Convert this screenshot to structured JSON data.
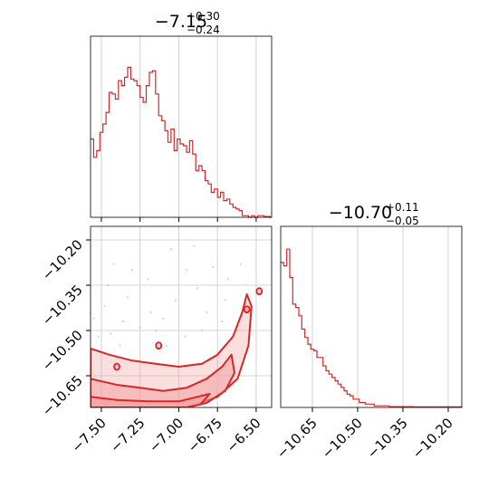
{
  "chart_data": [
    {
      "type": "histogram",
      "panel": "marginal-param-1",
      "title": {
        "main": "−7.15",
        "sup": "+0.30",
        "sub": "−0.24"
      },
      "xlim": [
        -7.57,
        -6.4
      ],
      "x_ticks": [
        -7.5,
        -7.25,
        -7.0,
        -6.75,
        -6.5
      ],
      "color": "#d62728",
      "grid": true,
      "bins": [
        [
          -7.57,
          0.47
        ],
        [
          -7.55,
          0.36
        ],
        [
          -7.53,
          0.4
        ],
        [
          -7.51,
          0.51
        ],
        [
          -7.49,
          0.56
        ],
        [
          -7.47,
          0.63
        ],
        [
          -7.45,
          0.75
        ],
        [
          -7.43,
          0.74
        ],
        [
          -7.41,
          0.71
        ],
        [
          -7.39,
          0.82
        ],
        [
          -7.37,
          0.79
        ],
        [
          -7.35,
          0.84
        ],
        [
          -7.33,
          0.9
        ],
        [
          -7.31,
          0.83
        ],
        [
          -7.29,
          0.82
        ],
        [
          -7.27,
          0.79
        ],
        [
          -7.25,
          0.72
        ],
        [
          -7.23,
          0.69
        ],
        [
          -7.21,
          0.79
        ],
        [
          -7.19,
          0.87
        ],
        [
          -7.17,
          0.88
        ],
        [
          -7.15,
          0.74
        ],
        [
          -7.13,
          0.61
        ],
        [
          -7.11,
          0.58
        ],
        [
          -7.09,
          0.52
        ],
        [
          -7.07,
          0.45
        ],
        [
          -7.05,
          0.53
        ],
        [
          -7.03,
          0.4
        ],
        [
          -7.01,
          0.47
        ],
        [
          -6.99,
          0.44
        ],
        [
          -6.97,
          0.43
        ],
        [
          -6.95,
          0.39
        ],
        [
          -6.93,
          0.46
        ],
        [
          -6.91,
          0.38
        ],
        [
          -6.89,
          0.28
        ],
        [
          -6.87,
          0.31
        ],
        [
          -6.85,
          0.28
        ],
        [
          -6.83,
          0.22
        ],
        [
          -6.81,
          0.2
        ],
        [
          -6.79,
          0.15
        ],
        [
          -6.77,
          0.17
        ],
        [
          -6.75,
          0.12
        ],
        [
          -6.73,
          0.15
        ],
        [
          -6.71,
          0.1
        ],
        [
          -6.69,
          0.11
        ],
        [
          -6.67,
          0.08
        ],
        [
          -6.65,
          0.06
        ],
        [
          -6.63,
          0.05
        ],
        [
          -6.61,
          0.04
        ],
        [
          -6.59,
          0.01
        ],
        [
          -6.57,
          0.01
        ],
        [
          -6.55,
          0.0
        ],
        [
          -6.53,
          0.01
        ],
        [
          -6.51,
          0.0
        ],
        [
          -6.49,
          0.01
        ],
        [
          -6.47,
          0.01
        ],
        [
          -6.45,
          0.005
        ],
        [
          -6.43,
          0.005
        ],
        [
          -6.41,
          0.0
        ]
      ]
    },
    {
      "type": "contour",
      "panel": "joint-param-1-vs-param-2",
      "xlim": [
        -7.57,
        -6.4
      ],
      "ylim": [
        -10.755,
        -10.155
      ],
      "x_ticks": [
        -7.5,
        -7.25,
        -7.0,
        -6.75,
        -6.5
      ],
      "y_ticks": [
        -10.2,
        -10.35,
        -10.5,
        -10.65
      ],
      "color": "#d62728",
      "fill_color": "#f4a0a0",
      "grid": true,
      "contour_levels": [
        {
          "fill_opacity": 0.35,
          "points": [
            [
              -7.57,
              -10.56
            ],
            [
              -7.45,
              -10.58
            ],
            [
              -7.3,
              -10.6
            ],
            [
              -7.15,
              -10.61
            ],
            [
              -7.0,
              -10.62
            ],
            [
              -6.85,
              -10.61
            ],
            [
              -6.75,
              -10.58
            ],
            [
              -6.65,
              -10.52
            ],
            [
              -6.59,
              -10.44
            ],
            [
              -6.56,
              -10.38
            ],
            [
              -6.53,
              -10.42
            ],
            [
              -6.55,
              -10.55
            ],
            [
              -6.62,
              -10.66
            ],
            [
              -6.75,
              -10.72
            ],
            [
              -6.95,
              -10.755
            ],
            [
              -7.57,
              -10.755
            ]
          ]
        },
        {
          "fill_opacity": 0.55,
          "points": [
            [
              -7.57,
              -10.66
            ],
            [
              -7.4,
              -10.68
            ],
            [
              -7.25,
              -10.69
            ],
            [
              -7.1,
              -10.7
            ],
            [
              -6.95,
              -10.69
            ],
            [
              -6.82,
              -10.66
            ],
            [
              -6.72,
              -10.62
            ],
            [
              -6.66,
              -10.58
            ],
            [
              -6.64,
              -10.64
            ],
            [
              -6.7,
              -10.7
            ],
            [
              -6.82,
              -10.74
            ],
            [
              -6.95,
              -10.755
            ],
            [
              -7.57,
              -10.755
            ]
          ]
        },
        {
          "fill_opacity": 0.8,
          "points": [
            [
              -7.57,
              -10.72
            ],
            [
              -7.4,
              -10.73
            ],
            [
              -7.2,
              -10.735
            ],
            [
              -7.0,
              -10.735
            ],
            [
              -6.88,
              -10.72
            ],
            [
              -6.8,
              -10.71
            ],
            [
              -6.86,
              -10.745
            ],
            [
              -6.95,
              -10.755
            ],
            [
              -7.57,
              -10.755
            ]
          ]
        }
      ],
      "islands": [
        [
          -6.48,
          -10.37
        ],
        [
          -6.56,
          -10.43
        ],
        [
          -7.13,
          -10.55
        ],
        [
          -7.4,
          -10.62
        ]
      ],
      "scatter": [
        [
          -7.42,
          -10.28
        ],
        [
          -7.3,
          -10.3
        ],
        [
          -7.05,
          -10.23
        ],
        [
          -6.9,
          -10.22
        ],
        [
          -6.78,
          -10.29
        ],
        [
          -7.48,
          -10.42
        ],
        [
          -7.36,
          -10.47
        ],
        [
          -7.18,
          -10.44
        ],
        [
          -7.02,
          -10.4
        ],
        [
          -6.88,
          -10.36
        ],
        [
          -6.72,
          -10.47
        ],
        [
          -6.62,
          -10.5
        ],
        [
          -7.52,
          -10.52
        ],
        [
          -7.44,
          -10.51
        ],
        [
          -7.25,
          -10.49
        ],
        [
          -7.1,
          -10.46
        ],
        [
          -6.96,
          -10.52
        ],
        [
          -6.82,
          -10.44
        ],
        [
          -6.68,
          -10.33
        ],
        [
          -7.33,
          -10.39
        ],
        [
          -7.2,
          -10.33
        ],
        [
          -6.95,
          -10.3
        ],
        [
          -6.6,
          -10.28
        ],
        [
          -7.46,
          -10.35
        ],
        [
          -7.15,
          -10.5
        ],
        [
          -6.85,
          -10.5
        ],
        [
          -7.55,
          -10.46
        ],
        [
          -6.7,
          -10.4
        ],
        [
          -7.38,
          -10.55
        ],
        [
          -7.08,
          -10.55
        ]
      ]
    },
    {
      "type": "histogram",
      "panel": "marginal-param-2",
      "title": {
        "main": "−10.70",
        "sup": "+0.11",
        "sub": "−0.05"
      },
      "xlim": [
        -10.755,
        -10.155
      ],
      "x_ticks": [
        -10.65,
        -10.5,
        -10.35,
        -10.2
      ],
      "color": "#d62728",
      "grid": true,
      "bins": [
        [
          -10.755,
          0.87
        ],
        [
          -10.745,
          0.85
        ],
        [
          -10.735,
          0.95
        ],
        [
          -10.725,
          0.78
        ],
        [
          -10.715,
          0.62
        ],
        [
          -10.705,
          0.6
        ],
        [
          -10.695,
          0.55
        ],
        [
          -10.685,
          0.47
        ],
        [
          -10.675,
          0.42
        ],
        [
          -10.665,
          0.38
        ],
        [
          -10.655,
          0.35
        ],
        [
          -10.645,
          0.34
        ],
        [
          -10.635,
          0.3
        ],
        [
          -10.625,
          0.3
        ],
        [
          -10.615,
          0.25
        ],
        [
          -10.605,
          0.22
        ],
        [
          -10.595,
          0.2
        ],
        [
          -10.585,
          0.18
        ],
        [
          -10.575,
          0.16
        ],
        [
          -10.565,
          0.14
        ],
        [
          -10.555,
          0.12
        ],
        [
          -10.545,
          0.1
        ],
        [
          -10.535,
          0.08
        ],
        [
          -10.525,
          0.07
        ],
        [
          -10.515,
          0.05
        ],
        [
          -10.505,
          0.05
        ],
        [
          -10.495,
          0.03
        ],
        [
          -10.485,
          0.03
        ],
        [
          -10.475,
          0.02
        ],
        [
          -10.465,
          0.02
        ],
        [
          -10.455,
          0.02
        ],
        [
          -10.445,
          0.01
        ],
        [
          -10.435,
          0.01
        ],
        [
          -10.425,
          0.01
        ],
        [
          -10.415,
          0.01
        ],
        [
          -10.405,
          0.01
        ],
        [
          -10.395,
          0.005
        ],
        [
          -10.385,
          0.005
        ],
        [
          -10.375,
          0.005
        ],
        [
          -10.365,
          0.005
        ],
        [
          -10.355,
          0.005
        ],
        [
          -10.345,
          0.005
        ],
        [
          -10.335,
          0.005
        ],
        [
          -10.325,
          0.005
        ],
        [
          -10.315,
          0.003
        ],
        [
          -10.305,
          0.003
        ],
        [
          -10.295,
          0.003
        ],
        [
          -10.285,
          0.003
        ],
        [
          -10.275,
          0.003
        ],
        [
          -10.265,
          0.003
        ],
        [
          -10.255,
          0.003
        ],
        [
          -10.245,
          0.003
        ],
        [
          -10.235,
          0.003
        ],
        [
          -10.225,
          0.003
        ],
        [
          -10.215,
          0.003
        ],
        [
          -10.205,
          0.003
        ],
        [
          -10.195,
          0.003
        ],
        [
          -10.185,
          0.003
        ],
        [
          -10.175,
          0.003
        ],
        [
          -10.165,
          0.003
        ]
      ]
    }
  ]
}
